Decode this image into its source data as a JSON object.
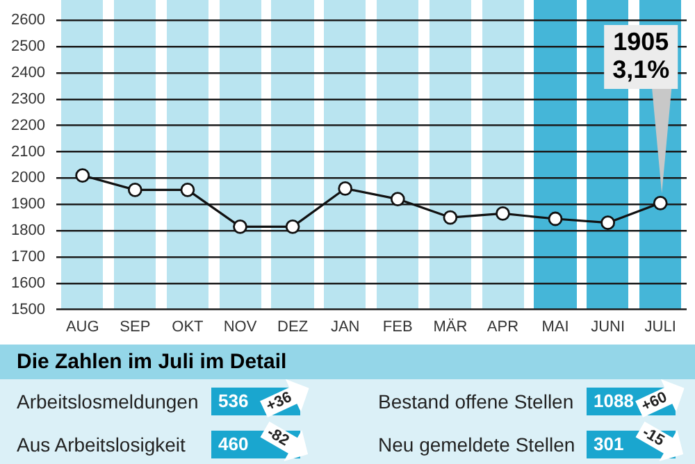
{
  "chart_data": [
    {
      "type": "line",
      "categories": [
        "AUG",
        "SEP",
        "OKT",
        "NOV",
        "DEZ",
        "JAN",
        "FEB",
        "MÄR",
        "APR",
        "MAI",
        "JUNI",
        "JULI"
      ],
      "series": [
        {
          "color": "#111111",
          "values": [
            2010,
            1955,
            1955,
            1815,
            1815,
            1960,
            1920,
            1850,
            1865,
            1845,
            1830,
            1905
          ]
        }
      ],
      "ylim": [
        1500,
        2600
      ],
      "yticks": [
        1500,
        1600,
        1700,
        1800,
        1900,
        2000,
        2100,
        2200,
        2300,
        2400,
        2500,
        2600
      ],
      "grid": "y",
      "legend": false,
      "marker": "circle",
      "line_style": "solid",
      "bands": [
        {
          "axis": "x",
          "from": "AUG",
          "to": "AUG",
          "color": "#b9e4f0"
        },
        {
          "axis": "x",
          "from": "SEP",
          "to": "SEP",
          "color": "#b9e4f0"
        },
        {
          "axis": "x",
          "from": "OKT",
          "to": "OKT",
          "color": "#b9e4f0"
        },
        {
          "axis": "x",
          "from": "NOV",
          "to": "NOV",
          "color": "#b9e4f0"
        },
        {
          "axis": "x",
          "from": "DEZ",
          "to": "DEZ",
          "color": "#b9e4f0"
        },
        {
          "axis": "x",
          "from": "JAN",
          "to": "JAN",
          "color": "#b9e4f0"
        },
        {
          "axis": "x",
          "from": "FEB",
          "to": "FEB",
          "color": "#b9e4f0"
        },
        {
          "axis": "x",
          "from": "MÄR",
          "to": "MÄR",
          "color": "#b9e4f0"
        },
        {
          "axis": "x",
          "from": "APR",
          "to": "APR",
          "color": "#b9e4f0"
        },
        {
          "axis": "x",
          "from": "MAI",
          "to": "MAI",
          "color": "#45b6d8"
        },
        {
          "axis": "x",
          "from": "JUNI",
          "to": "JUNI",
          "color": "#45b6d8"
        },
        {
          "axis": "x",
          "from": "JULI",
          "to": "JULI",
          "color": "#45b6d8"
        }
      ],
      "annotations": [
        {
          "text": "1905\n3,1%",
          "x": "JULI",
          "y": 1905
        }
      ]
    },
    {
      "type": "other",
      "title": "Die Zahlen im Juli im Detail",
      "annotations": [
        "Arbeitslosmeldungen",
        "536",
        "+36",
        "Bestand offene Stellen",
        "1088",
        "+60",
        "Aus Arbeitslosigkeit",
        "460",
        "-82",
        "Neu gemeldete Stellen",
        "301",
        "-15"
      ]
    }
  ]
}
